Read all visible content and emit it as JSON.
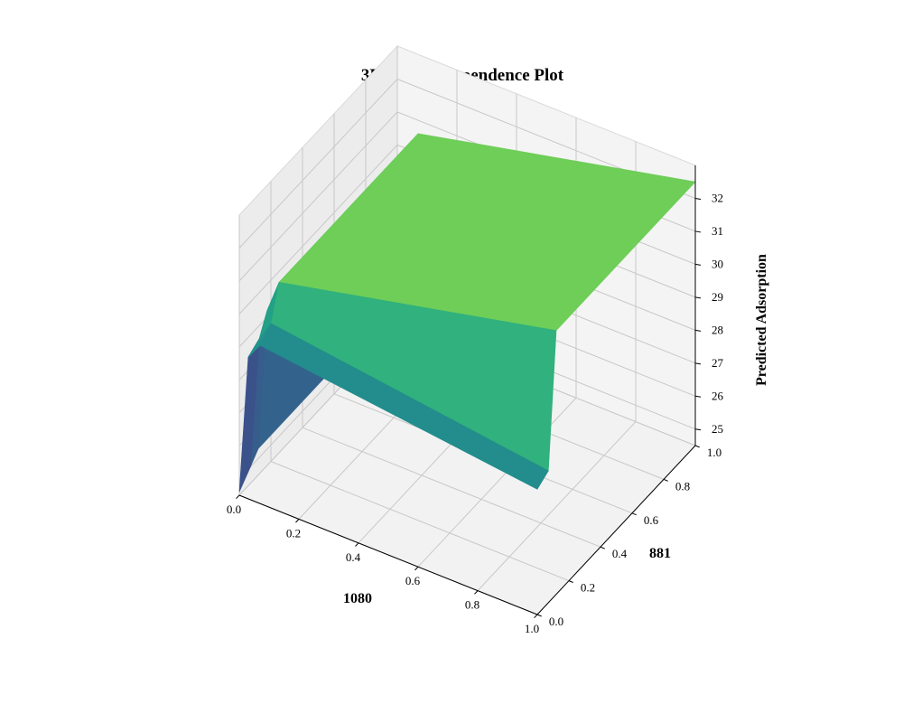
{
  "chart_data": {
    "type": "surface",
    "title": "3D Partial Dependence Plot",
    "xlabel": "1080",
    "ylabel": "881",
    "zlabel": "Predicted Adsorption",
    "xlim": [
      0.0,
      1.0
    ],
    "ylim": [
      0.0,
      1.0
    ],
    "zlim": [
      24.5,
      33.0
    ],
    "x_ticks": [
      "0.0",
      "0.2",
      "0.4",
      "0.6",
      "0.8",
      "1.0"
    ],
    "y_ticks": [
      "0.0",
      "0.2",
      "0.4",
      "0.6",
      "0.8",
      "1.0"
    ],
    "z_ticks": [
      "25",
      "26",
      "27",
      "28",
      "29",
      "30",
      "31",
      "32"
    ],
    "grid": true,
    "colormap": "viridis",
    "x_breakpoints": [
      0.0,
      0.03,
      0.07,
      1.0
    ],
    "y_breakpoints": [
      0.0,
      0.07,
      0.12,
      1.0
    ],
    "z_grid_approx": [
      [
        24.6,
        25.0,
        25.3,
        25.3
      ],
      [
        28.8,
        29.0,
        29.6,
        29.6
      ],
      [
        29.3,
        29.6,
        30.6,
        30.6
      ],
      [
        28.3,
        28.5,
        32.5,
        32.5
      ]
    ]
  }
}
